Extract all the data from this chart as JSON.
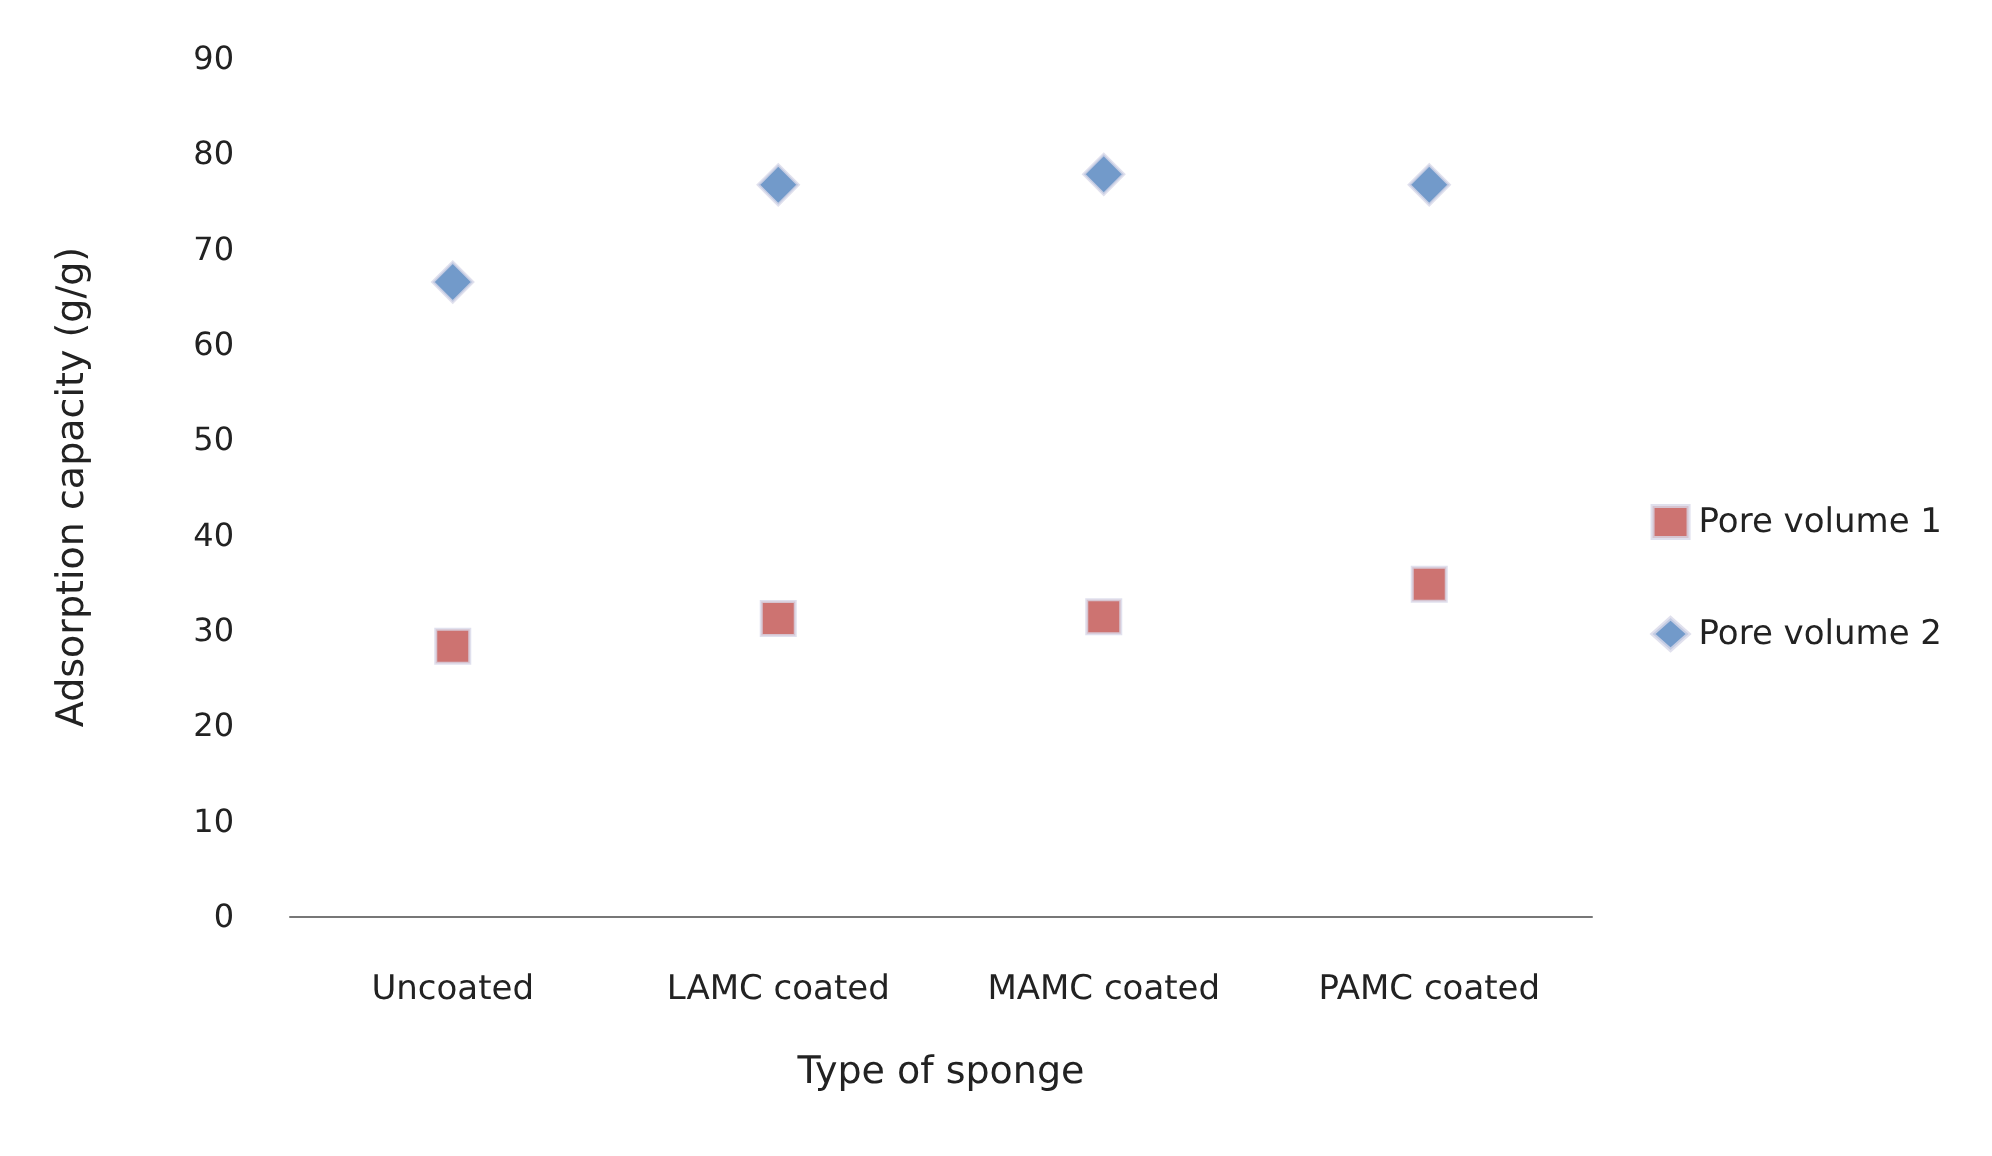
{
  "chart_data": {
    "type": "scatter",
    "xlabel": "Type of sponge",
    "ylabel": "Adsorption capacity (g/g)",
    "categories": [
      "Uncoated",
      "LAMC coated",
      "MAMC coated",
      "PAMC coated"
    ],
    "series": [
      {
        "name": "Pore volume 1",
        "color": "#c0504d",
        "marker": "square",
        "values": [
          28.3,
          31.2,
          31.4,
          34.8
        ]
      },
      {
        "name": "Pore volume 2",
        "color": "#4f81bd",
        "marker": "diamond",
        "values": [
          66.5,
          76.7,
          77.8,
          76.7
        ]
      }
    ],
    "ylim": [
      0,
      90
    ],
    "yticks": [
      0,
      10,
      20,
      30,
      40,
      50,
      60,
      70,
      80,
      90
    ],
    "grid": false,
    "legend": "right"
  }
}
